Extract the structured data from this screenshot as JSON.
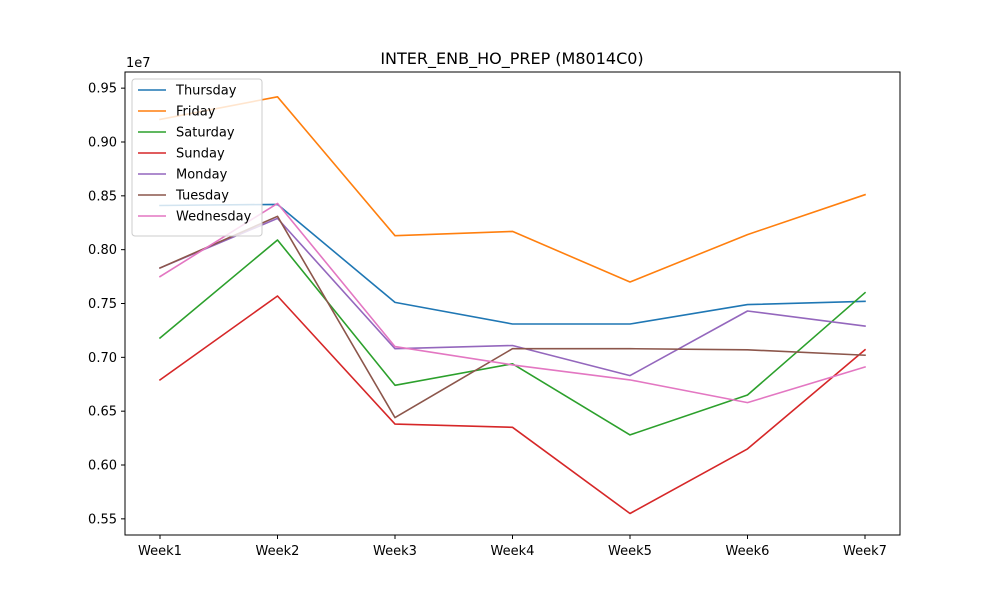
{
  "chart_data": {
    "type": "line",
    "title": "INTER_ENB_HO_PREP (M8014C0)",
    "xlabel": "",
    "ylabel": "",
    "y_offset_label": "1e7",
    "categories": [
      "Week1",
      "Week2",
      "Week3",
      "Week4",
      "Week5",
      "Week6",
      "Week7"
    ],
    "ylim": [
      5.35,
      9.65
    ],
    "yticks": [
      5.5,
      6.0,
      6.5,
      7.0,
      7.5,
      8.0,
      8.5,
      9.0,
      9.5
    ],
    "ytick_labels": [
      "0.55",
      "0.60",
      "0.65",
      "0.70",
      "0.75",
      "0.80",
      "0.85",
      "0.90",
      "0.95"
    ],
    "grid": false,
    "legend_position": "top-left",
    "series": [
      {
        "name": "Thursday",
        "color": "#1f77b4",
        "values": [
          8.41,
          8.42,
          7.51,
          7.31,
          7.31,
          7.49,
          7.52
        ]
      },
      {
        "name": "Friday",
        "color": "#ff7f0e",
        "values": [
          9.21,
          9.42,
          8.13,
          8.17,
          7.7,
          8.14,
          8.51
        ]
      },
      {
        "name": "Saturday",
        "color": "#2ca02c",
        "values": [
          7.18,
          8.09,
          6.74,
          6.94,
          6.28,
          6.65,
          7.6
        ]
      },
      {
        "name": "Sunday",
        "color": "#d62728",
        "values": [
          6.79,
          7.57,
          6.38,
          6.35,
          5.55,
          6.15,
          7.07
        ]
      },
      {
        "name": "Monday",
        "color": "#9467bd",
        "values": [
          7.83,
          8.29,
          7.08,
          7.11,
          6.83,
          7.43,
          7.29
        ]
      },
      {
        "name": "Tuesday",
        "color": "#8c564b",
        "values": [
          7.83,
          8.31,
          6.44,
          7.08,
          7.08,
          7.07,
          7.02
        ]
      },
      {
        "name": "Wednesday",
        "color": "#e377c2",
        "values": [
          7.75,
          8.43,
          7.1,
          6.93,
          6.79,
          6.58,
          6.91
        ]
      }
    ]
  }
}
